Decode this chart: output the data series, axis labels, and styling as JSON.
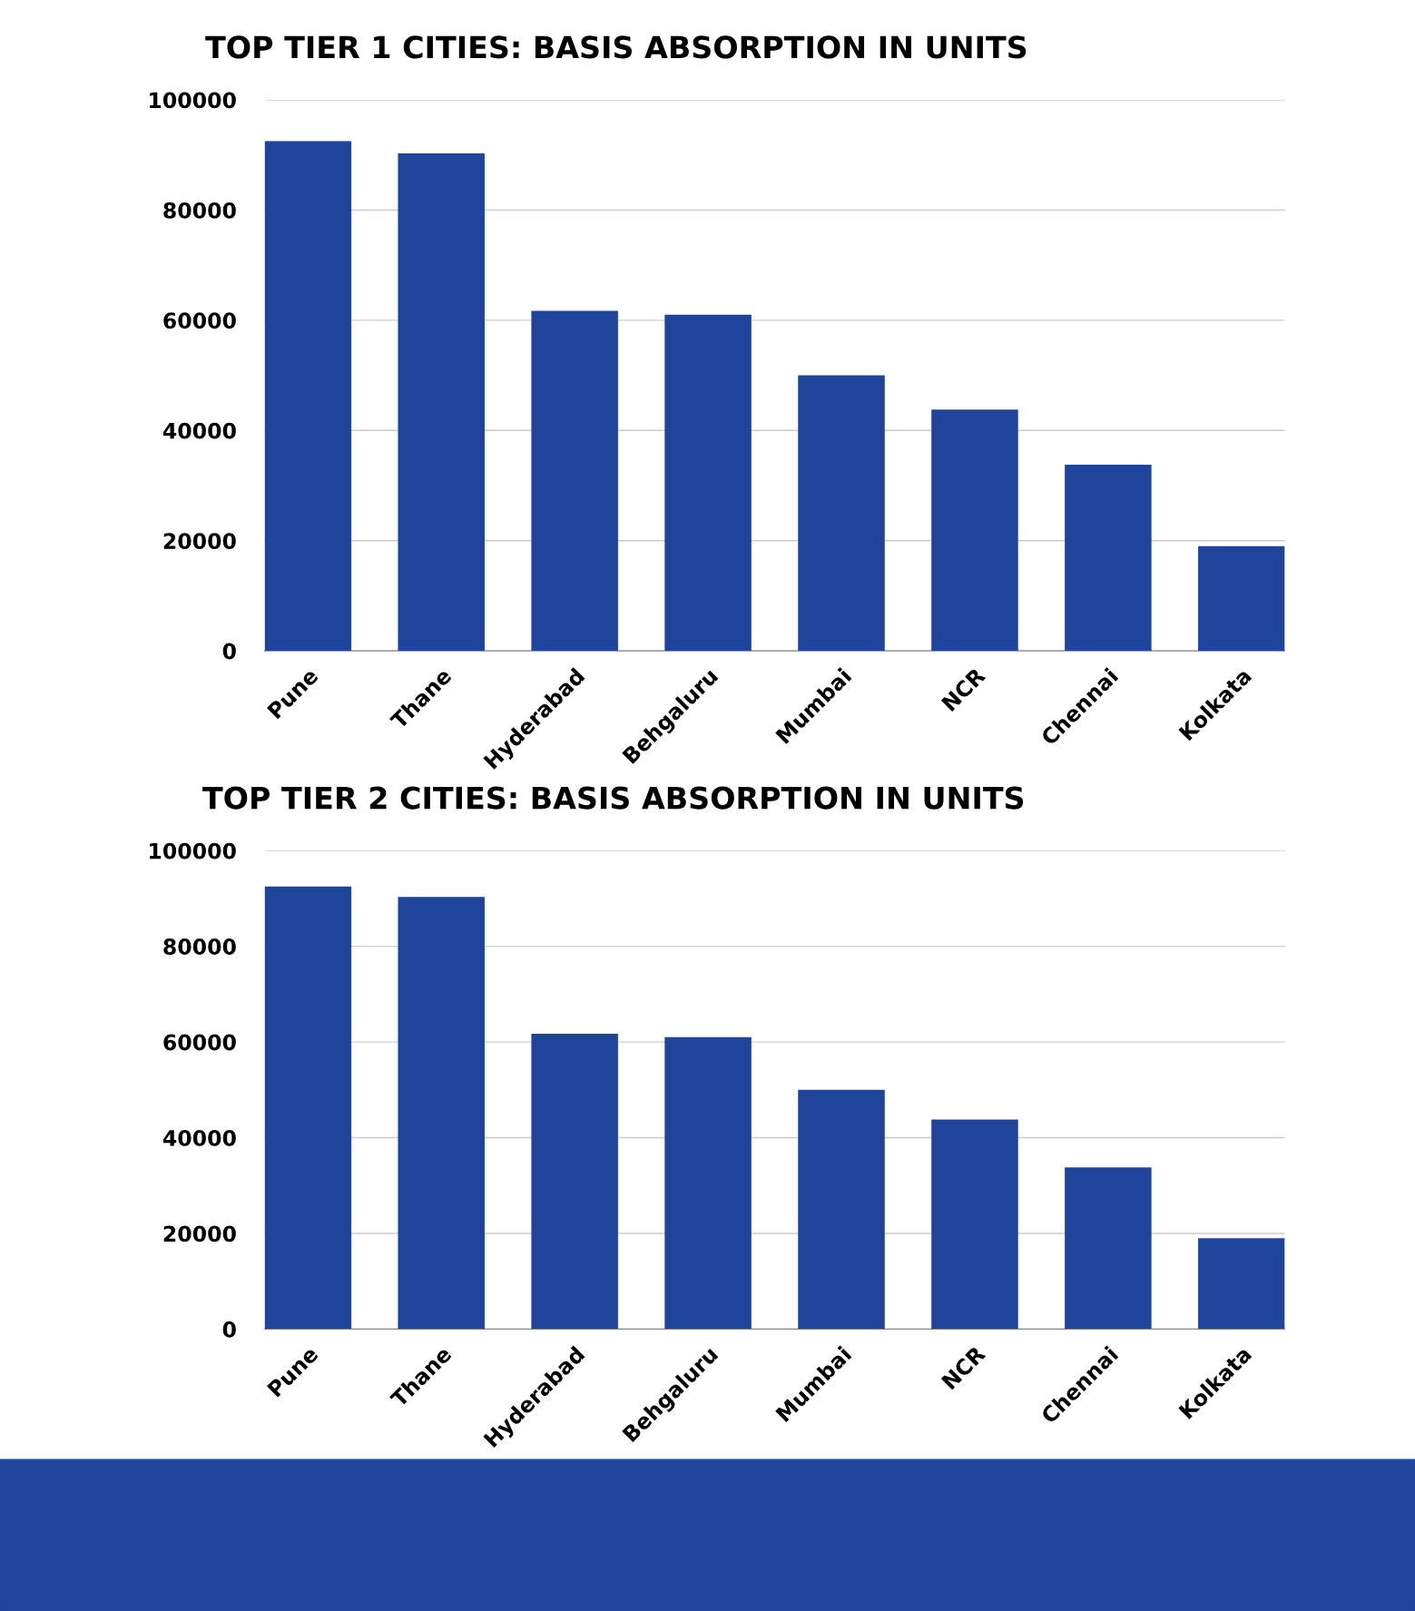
{
  "chart_data": [
    {
      "type": "bar",
      "title": "TOP TIER 1 CITIES: BASIS ABSORPTION IN UNITS",
      "categories": [
        "Pune",
        "Thane",
        "Hyderabad",
        "Behgaluru",
        "Mumbai",
        "NCR",
        "Chennai",
        "Kolkata"
      ],
      "values": [
        92500,
        90300,
        61700,
        61000,
        50000,
        43800,
        33800,
        19000
      ],
      "color": "#1f449b",
      "ylim": [
        0,
        100000
      ],
      "yticks": [
        0,
        20000,
        40000,
        60000,
        80000,
        100000
      ],
      "grid": "y"
    },
    {
      "type": "bar",
      "title": "TOP TIER 2 CITIES: BASIS ABSORPTION IN UNITS",
      "categories": [
        "Pune",
        "Thane",
        "Hyderabad",
        "Behgaluru",
        "Mumbai",
        "NCR",
        "Chennai",
        "Kolkata"
      ],
      "values": [
        92500,
        90300,
        61700,
        61000,
        50000,
        43800,
        33800,
        19000
      ],
      "color": "#1f449b",
      "ylim": [
        0,
        100000
      ],
      "yticks": [
        0,
        20000,
        40000,
        60000,
        80000,
        100000
      ],
      "grid": "y"
    }
  ]
}
